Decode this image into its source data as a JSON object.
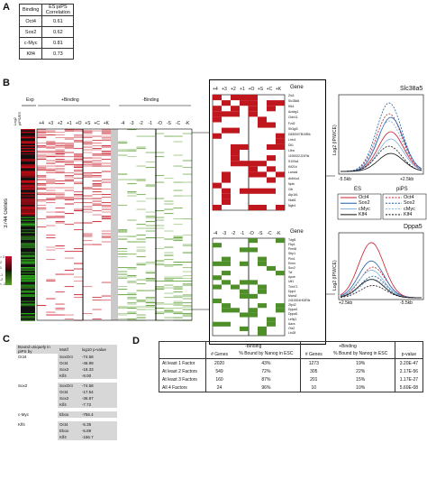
{
  "panel_letters": [
    "A",
    "B",
    "C",
    "D"
  ],
  "panelA": {
    "headers": [
      "Binding",
      "ES:piPS Correlation"
    ],
    "rows": [
      {
        "factor": "Oct4",
        "corr": "0.61"
      },
      {
        "factor": "Sox2",
        "corr": "0.62"
      },
      {
        "factor": "c-Myc",
        "corr": "0.81"
      },
      {
        "factor": "Klf4",
        "corr": "0.73"
      }
    ]
  },
  "panelB": {
    "exp_label": "Exp",
    "exp_col_label": "Log2 piPS/ES",
    "plus_binding_label": "+Binding",
    "minus_binding_label": "-Binding",
    "plus_cols": [
      "+4",
      "+3",
      "+2",
      "+1",
      "+O",
      "+S",
      "+C",
      "+K"
    ],
    "minus_cols": [
      "-4",
      "-3",
      "-2",
      "-1",
      "-O",
      "-S",
      "-C",
      "-K"
    ],
    "genes_count_label": "3744 Genes",
    "scale_labels": [
      "> 3",
      "2",
      "1",
      "-1",
      "-2",
      "< -3"
    ],
    "zoom_cols_top": [
      "+4",
      "+3",
      "+2",
      "+1",
      "+O",
      "+S",
      "+C",
      "+K"
    ],
    "zoom_cols_bottom": [
      "-4",
      "-3",
      "-2",
      "-1",
      "-O",
      "-S",
      "-C",
      "-K"
    ],
    "gene_header": "Gene",
    "genes_top": [
      "Zic3",
      "Slc38a5",
      "Klk1",
      "Acsbg1",
      "Cldn11",
      "Fzd2",
      "Sh3gl3",
      "D830007B15Rik",
      "Lrrtc1",
      "Dll1",
      "Lifra",
      "1190002J21Rik",
      "S100a1",
      "Kif21b",
      "Lama4",
      "Aldh1a1",
      "Nptn",
      "Cth",
      "Atp1b1",
      "Hiatl1",
      "Ngb4"
    ],
    "genes_bottom": [
      "Tdgf1",
      "Fbp1",
      "Prmt8",
      "Sfrp1",
      "Pim1",
      "Ermn",
      "Sox2",
      "Tcf",
      "Apoe",
      "Utf1",
      "Trim71",
      "Dpp4",
      "Mam2",
      "2410004H02Rik",
      "Zfp42",
      "Dppa4",
      "Dppa5",
      "Lefty1",
      "Aacs",
      "Otx2",
      "Lin28"
    ],
    "plot_top": {
      "title": "Slc38a5",
      "y_label": "Log2 (IP/WCE)",
      "x_left": "-5.5kb",
      "x_right": "+2.5kb"
    },
    "plot_bottom": {
      "title": "Dppa5",
      "y_label": "Log2 (IP/WCE)",
      "x_left": "+2.5kb",
      "x_right": "-5.5kb"
    },
    "legend": {
      "es_title": "ES",
      "pips_title": "piPS",
      "items": [
        "Oct4",
        "Sox2",
        "cMyc",
        "Klf4"
      ],
      "colors": {
        "oct4": "#c8202c",
        "sox2": "#1f5fa8",
        "cmyc": "#7db0d8",
        "klf4": "#111111"
      }
    }
  },
  "panelC": {
    "header_col1": "Bound uniquely in piPS by",
    "header_col2": "Motif",
    "header_col3": "log10 p-value",
    "groups": [
      {
        "factor": "Oct4",
        "rows": [
          [
            "SoxOct",
            "-74.58"
          ],
          [
            "Oct4",
            "-46.99"
          ],
          [
            "Sox2",
            "-18.33"
          ],
          [
            "Klf4",
            "-8.00"
          ]
        ]
      },
      {
        "factor": "Sox2",
        "rows": [
          [
            "SoxOct",
            "-74.58"
          ],
          [
            "Oct4",
            "-17.54"
          ],
          [
            "Sox2",
            "-36.87"
          ],
          [
            "Klf4",
            "-7.72"
          ]
        ]
      },
      {
        "factor": "c-Myc",
        "rows": [
          [
            "Ebox",
            "-755.4"
          ]
        ]
      },
      {
        "factor": "Klf4",
        "rows": [
          [
            "Oct4",
            "-5.35"
          ],
          [
            "Ebox",
            "-5.89"
          ],
          [
            "Klf4",
            "-156.7"
          ]
        ]
      }
    ]
  },
  "panelD": {
    "minus_binding": "-Binding",
    "plus_binding": "+Binding",
    "col_headers": [
      "# Genes",
      "% Bound by Nanog in ESC",
      "# Genes",
      "% Bound by Nanog in ESC",
      "p-value"
    ],
    "rows": [
      {
        "label": "At least 1 Factor",
        "a": "2020",
        "b": "43%",
        "c": "1273",
        "d": "19%",
        "p": "3.20E-47"
      },
      {
        "label": "At least 2 Factors",
        "a": "549",
        "b": "72%",
        "c": "305",
        "d": "22%",
        "p": "2.17E-56"
      },
      {
        "label": "At least 3 Factors",
        "a": "160",
        "b": "87%",
        "c": "201",
        "d": "15%",
        "p": "1.17E-27"
      },
      {
        "label": "All 4 Factors",
        "a": "24",
        "b": "96%",
        "c": "10",
        "d": "10%",
        "p": "5.60E-08"
      }
    ]
  }
}
